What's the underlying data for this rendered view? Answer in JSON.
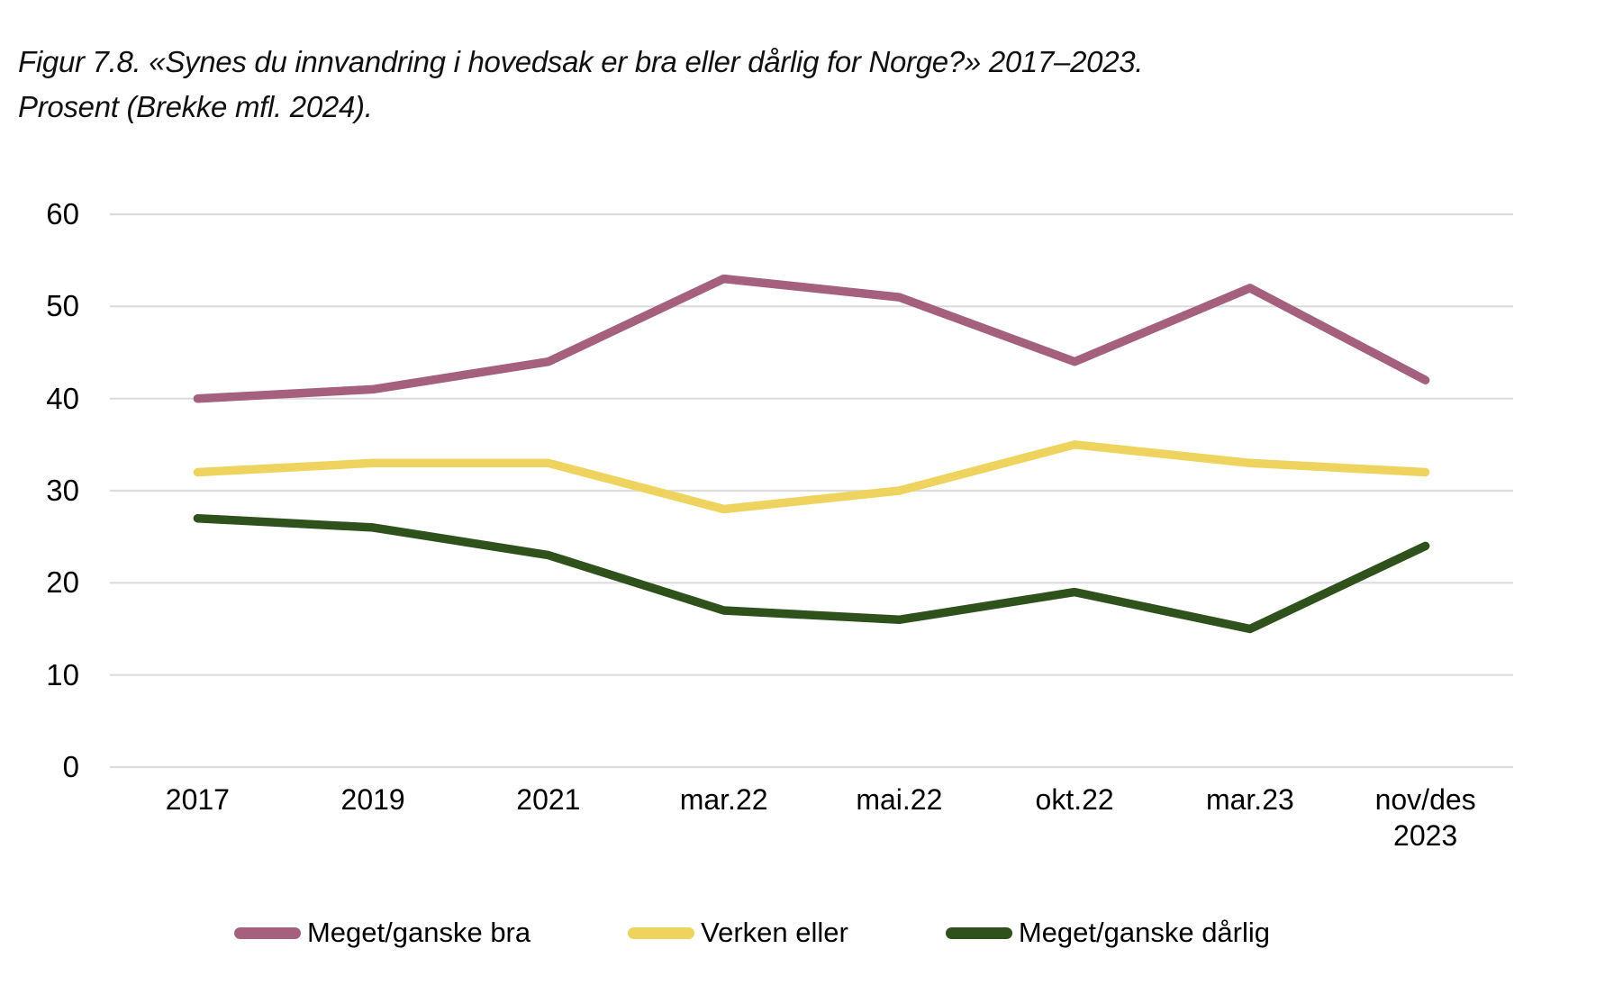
{
  "figure": {
    "title_line1": "Figur 7.8. «Synes du innvandring i hovedsak er bra eller dårlig for Norge?» 2017–2023.",
    "title_line2": "Prosent (Brekke mfl. 2024)."
  },
  "colors": {
    "gridline": "#dcdcdc",
    "text": "#000000",
    "bra": "#a4607d",
    "verken": "#eed45f",
    "daarlig": "#2f521c"
  },
  "chart_data": {
    "type": "line",
    "title": "Figur 7.8. «Synes du innvandring i hovedsak er bra eller dårlig for Norge?» 2017–2023. Prosent (Brekke mfl. 2024).",
    "xlabel": "",
    "ylabel": "",
    "categories": [
      "2017",
      "2019",
      "2021",
      "mar.22",
      "mai.22",
      "okt.22",
      "mar.23",
      "nov/des 2023"
    ],
    "series": [
      {
        "name": "Meget/ganske bra",
        "color": "#a4607d",
        "values": [
          40,
          41,
          44,
          53,
          51,
          44,
          52,
          42
        ]
      },
      {
        "name": "Verken eller",
        "color": "#eed45f",
        "values": [
          32,
          33,
          33,
          28,
          30,
          35,
          33,
          32
        ]
      },
      {
        "name": "Meget/ganske dårlig",
        "color": "#2f521c",
        "values": [
          27,
          26,
          23,
          17,
          16,
          19,
          15,
          24
        ]
      }
    ],
    "ylim": [
      0,
      60
    ],
    "yticks": [
      0,
      10,
      20,
      30,
      40,
      50,
      60
    ],
    "grid": true,
    "legend_position": "bottom"
  }
}
